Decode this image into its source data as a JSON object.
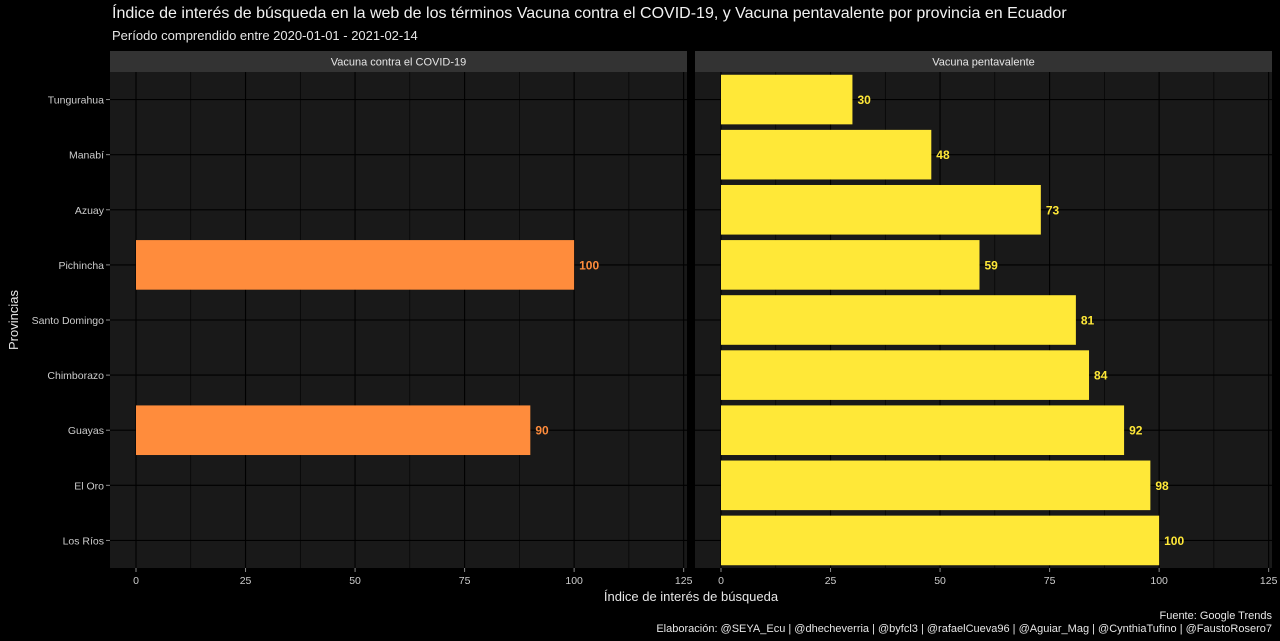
{
  "title": "Índice de interés de búsqueda en la web de los términos Vacuna contra el COVID-19, y Vacuna pentavalente por provincia en Ecuador",
  "subtitle": "Período comprendido entre 2020-01-01 - 2021-02-14",
  "caption": {
    "source": "Fuente: Google Trends",
    "credits": "Elaboración:  @SEYA_Ecu | @dhecheverria | @byfcl3 | @rafaelCueva96 | @Aguiar_Mag | @CynthiaTufino | @FaustoRosero7"
  },
  "colors": {
    "background": "#000000",
    "panel": "#191919",
    "strip": "#333333",
    "grid": "#000000",
    "covid_bar": "#FF8C3C",
    "penta_bar": "#FFE838",
    "covid_label": "#FF8C3C",
    "penta_label": "#FFE838"
  },
  "chart_data": {
    "type": "bar",
    "orientation": "horizontal",
    "xlabel": "Índice de interés de búsqueda",
    "ylabel": "Provincias",
    "xlim": [
      0,
      125
    ],
    "xticks": [
      0,
      25,
      50,
      75,
      100,
      125
    ],
    "categories": [
      "Tungurahua",
      "Manabí",
      "Azuay",
      "Pichincha",
      "Santo Domingo",
      "Chimborazo",
      "Guayas",
      "El Oro",
      "Los Ríos"
    ],
    "facets": [
      {
        "name": "Vacuna contra el COVID-19",
        "values": [
          null,
          null,
          null,
          100,
          null,
          null,
          90,
          null,
          null
        ]
      },
      {
        "name": "Vacuna pentavalente",
        "values": [
          30,
          48,
          73,
          59,
          81,
          84,
          92,
          98,
          100
        ]
      }
    ]
  }
}
